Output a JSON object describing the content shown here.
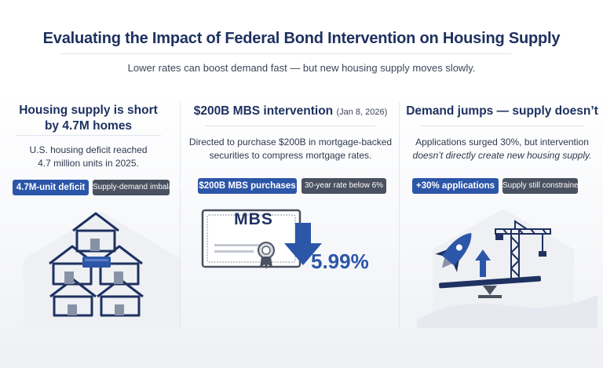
{
  "header": {
    "title": "Evaluating the Impact of Federal Bond Intervention on Housing Supply",
    "subtitle": "Lower rates can boost demand fast — but new housing supply moves slowly."
  },
  "colors": {
    "accent_blue": "#2c56a8",
    "navy": "#1e3160",
    "badge_gray": "#4a5160"
  },
  "columns": [
    {
      "heading_line1": "Housing supply is short",
      "heading_line2": "by 4.7M homes",
      "body_line1": "U.S. housing deficit reached",
      "body_line2": "4.7 million units in 2025.",
      "badge_primary": "4.7M-unit deficit",
      "badge_secondary": "Supply-demand imbalance",
      "icon": "houses-cluster-icon"
    },
    {
      "heading": "$200B MBS intervention",
      "heading_date": "(Jan 8, 2026)",
      "body_line1": "Directed to purchase $200B in mortgage-backed",
      "body_line2": "securities to compress mortgage rates.",
      "badge_primary": "$200B MBS purchases",
      "badge_secondary": "30-year rate below 6%",
      "certificate_label": "MBS",
      "rate_value": "5.99%",
      "icon": "mbs-certificate-icon"
    },
    {
      "heading": "Demand jumps — supply doesn’t",
      "body_line1": "Applications surged 30%, but intervention",
      "body_line2": "doesn’t directly create new housing supply.",
      "badge_primary": "+30% applications",
      "badge_secondary": "Supply still constrained",
      "icon": "rocket-crane-seesaw-icon"
    }
  ]
}
